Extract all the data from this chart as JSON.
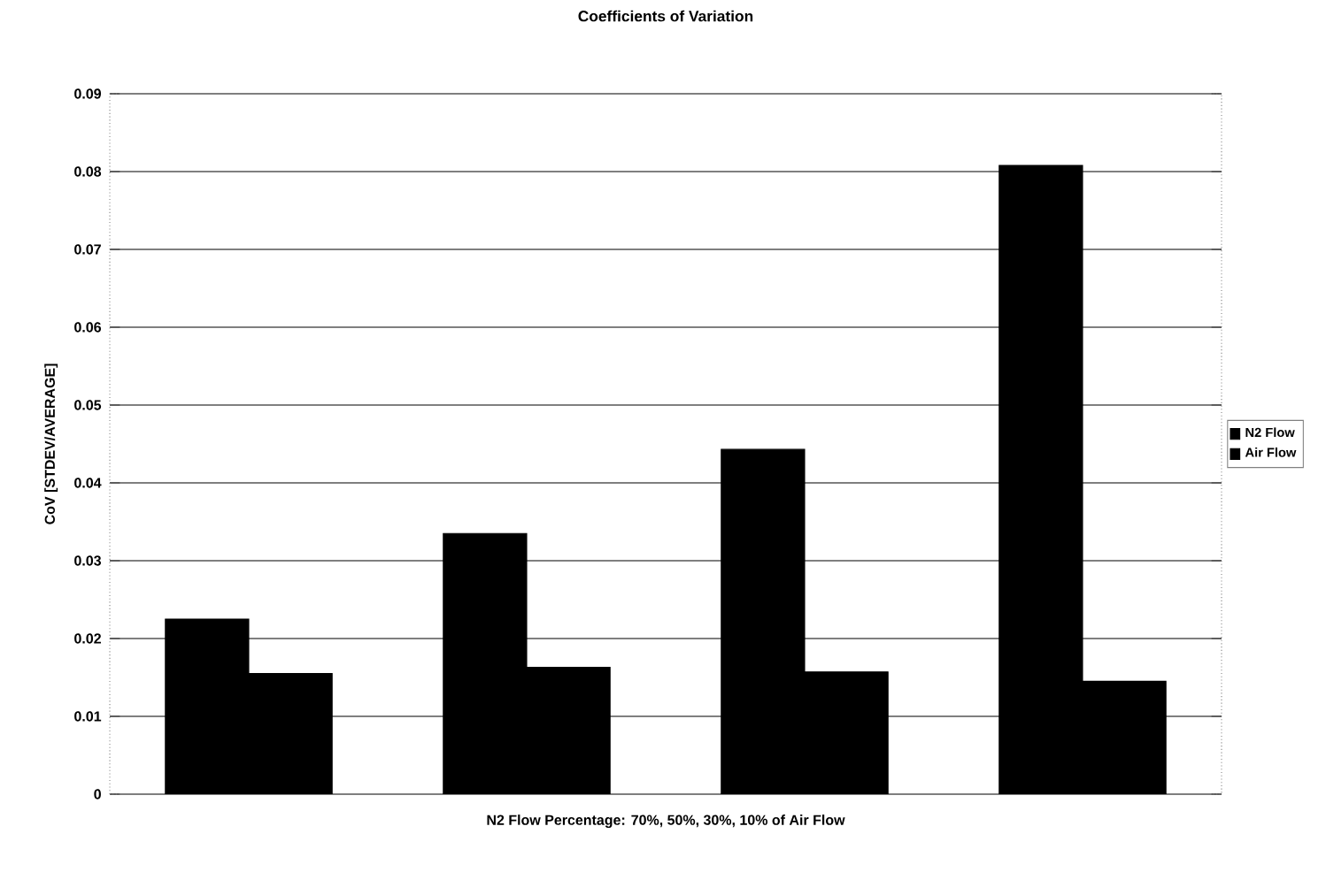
{
  "chart_data": {
    "type": "bar",
    "title": "Coefficients of Variation",
    "xlabel": "N2 Flow Percentage: 70%, 50%, 30%, 10% of Air Flow",
    "ylabel": "CoV [STDEV/AVERAGE]",
    "categories": [
      null,
      null,
      null,
      null
    ],
    "series": [
      {
        "name": "N2 Flow",
        "color": "#000000",
        "values": [
          0.0225,
          0.0335,
          0.0443,
          0.0808
        ]
      },
      {
        "name": "Air Flow",
        "color": "#000000",
        "values": [
          0.0155,
          0.0163,
          0.0157,
          0.0145
        ]
      }
    ],
    "ylim": [
      0,
      0.09
    ],
    "yticks": [
      0,
      0.01,
      0.02,
      0.03,
      0.04,
      0.05,
      0.06,
      0.07,
      0.08,
      0.09
    ],
    "grid": "y",
    "legend": "right"
  }
}
